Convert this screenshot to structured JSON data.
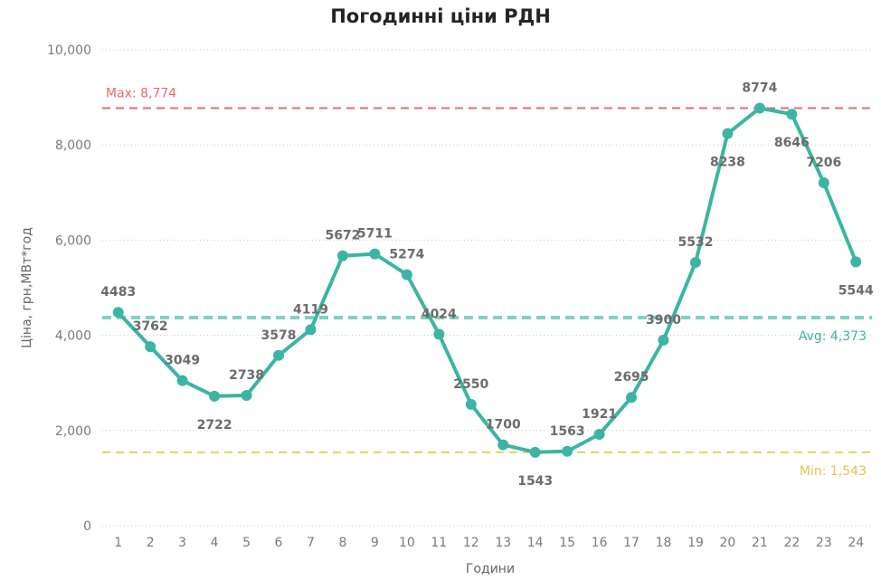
{
  "chart_data": {
    "type": "line",
    "title": "Погодинні ціни РДН",
    "xlabel": "Години",
    "ylabel": "Ціна, грн,МВт*год",
    "categories": [
      "1",
      "2",
      "3",
      "4",
      "5",
      "6",
      "7",
      "8",
      "9",
      "10",
      "11",
      "12",
      "13",
      "14",
      "15",
      "16",
      "17",
      "18",
      "19",
      "20",
      "21",
      "22",
      "23",
      "24"
    ],
    "values": [
      4483,
      3762,
      3049,
      2722,
      2738,
      3578,
      4119,
      5672,
      5711,
      5274,
      4024,
      2550,
      1700,
      1543,
      1563,
      1921,
      2695,
      3900,
      5532,
      8238,
      8774,
      8646,
      7206,
      5544
    ],
    "ylim": [
      0,
      10000
    ],
    "yticks": [
      0,
      2000,
      4000,
      6000,
      8000,
      10000
    ],
    "ytick_labels": [
      "0",
      "2,000",
      "4,000",
      "6,000",
      "8,000",
      "10,000"
    ],
    "grid": true,
    "colors": {
      "line": "#3bb5a2",
      "max": "#e8696b",
      "avg": "#7fd1c4",
      "min": "#ecd15a",
      "avg_label": "#3bb5a2",
      "min_label": "#e2c44a"
    },
    "reference_lines": [
      {
        "kind": "max",
        "label": "Max: 8,774",
        "value": 8774
      },
      {
        "kind": "avg",
        "label": "Avg: 4,373",
        "value": 4373
      },
      {
        "kind": "min",
        "label": "Min: 1,543",
        "value": 1543
      }
    ]
  }
}
